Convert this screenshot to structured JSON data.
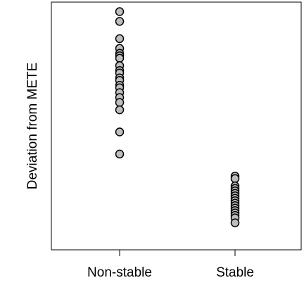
{
  "chart_data": {
    "type": "scatter",
    "title": "",
    "xlabel": "",
    "ylabel": "Deviation from METE",
    "categories": [
      "Non-stable",
      "Stable"
    ],
    "grid": false,
    "legend": "none",
    "ylim": [
      0,
      100
    ],
    "point_fill": "#bebebe",
    "point_stroke": "#000000",
    "series": [
      {
        "category": "Non-stable",
        "values": [
          97,
          93,
          86,
          82,
          80,
          79,
          78,
          75,
          73,
          72,
          70,
          69,
          67,
          66,
          64,
          62,
          60,
          57,
          48,
          39
        ]
      },
      {
        "category": "Stable",
        "values": [
          30,
          29,
          26,
          25,
          24,
          23,
          22,
          21,
          20,
          19,
          18,
          17,
          16,
          15,
          14,
          13,
          11
        ]
      }
    ]
  }
}
